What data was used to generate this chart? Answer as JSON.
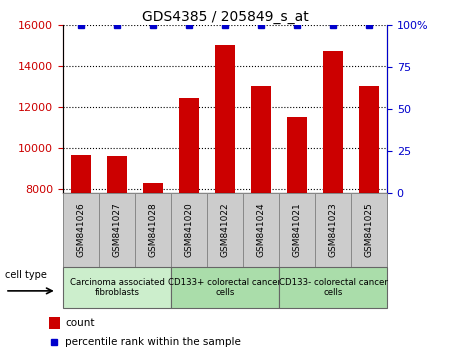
{
  "title": "GDS4385 / 205849_s_at",
  "samples": [
    "GSM841026",
    "GSM841027",
    "GSM841028",
    "GSM841020",
    "GSM841022",
    "GSM841024",
    "GSM841021",
    "GSM841023",
    "GSM841025"
  ],
  "counts": [
    9650,
    9580,
    8300,
    12450,
    15000,
    13000,
    11500,
    14700,
    13000
  ],
  "percentile_ranks": [
    100,
    100,
    100,
    100,
    100,
    100,
    100,
    100,
    100
  ],
  "bar_color": "#cc0000",
  "dot_color": "#0000cc",
  "ylim_left": [
    7800,
    16000
  ],
  "ylim_right": [
    0,
    100
  ],
  "yticks_left": [
    8000,
    10000,
    12000,
    14000,
    16000
  ],
  "yticks_right": [
    0,
    25,
    50,
    75,
    100
  ],
  "ytick_right_labels": [
    "0",
    "25",
    "50",
    "75",
    "100%"
  ],
  "group_labels": [
    "Carcinoma associated\nfibroblasts",
    "CD133+ colorectal cancer\ncells",
    "CD133- colorectal cancer\ncells"
  ],
  "group_ranges": [
    [
      0,
      3
    ],
    [
      3,
      6
    ],
    [
      6,
      9
    ]
  ],
  "group_colors": [
    "#cceecc",
    "#aaddaa",
    "#aaddaa"
  ],
  "cell_type_label": "cell type",
  "xlabel_box_color": "#cccccc",
  "grid_color": "#000000"
}
